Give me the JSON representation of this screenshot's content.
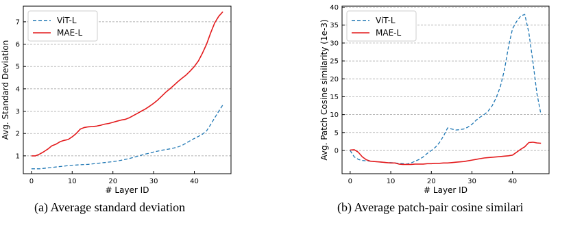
{
  "captions": [
    "(a) Average standard deviation",
    "(b) Average patch-pair cosine similari"
  ],
  "chart_data": [
    {
      "type": "line",
      "xlabel": "# Layer ID",
      "ylabel": "Avg. Standard Deviation",
      "xlim": [
        -2,
        49
      ],
      "ylim": [
        0.2,
        7.7
      ],
      "xticks": [
        0,
        10,
        20,
        30,
        40
      ],
      "yticks": [
        1,
        2,
        3,
        4,
        5,
        6,
        7
      ],
      "grid": "y-dashed",
      "legend": "top-left",
      "x": [
        0,
        1,
        2,
        3,
        4,
        5,
        6,
        7,
        8,
        9,
        10,
        11,
        12,
        13,
        14,
        15,
        16,
        17,
        18,
        19,
        20,
        21,
        22,
        23,
        24,
        25,
        26,
        27,
        28,
        29,
        30,
        31,
        32,
        33,
        34,
        35,
        36,
        37,
        38,
        39,
        40,
        41,
        42,
        43,
        44,
        45,
        46,
        47
      ],
      "series": [
        {
          "name": "ViT-L",
          "color": "#1f77b4",
          "dash": "dashed",
          "values": [
            0.42,
            0.42,
            0.42,
            0.44,
            0.46,
            0.48,
            0.5,
            0.52,
            0.54,
            0.56,
            0.58,
            0.59,
            0.6,
            0.61,
            0.62,
            0.64,
            0.66,
            0.68,
            0.7,
            0.72,
            0.74,
            0.77,
            0.8,
            0.84,
            0.88,
            0.93,
            0.98,
            1.03,
            1.08,
            1.12,
            1.17,
            1.21,
            1.25,
            1.28,
            1.31,
            1.35,
            1.4,
            1.47,
            1.57,
            1.68,
            1.78,
            1.87,
            1.97,
            2.12,
            2.4,
            2.7,
            3.0,
            3.28
          ]
        },
        {
          "name": "MAE-L",
          "color": "#e31a1c",
          "dash": "solid",
          "values": [
            1.0,
            1.0,
            1.08,
            1.18,
            1.3,
            1.45,
            1.52,
            1.63,
            1.69,
            1.73,
            1.85,
            2.0,
            2.2,
            2.27,
            2.3,
            2.31,
            2.33,
            2.37,
            2.42,
            2.45,
            2.5,
            2.55,
            2.6,
            2.63,
            2.7,
            2.8,
            2.9,
            3.0,
            3.1,
            3.22,
            3.35,
            3.5,
            3.67,
            3.85,
            4.0,
            4.16,
            4.33,
            4.48,
            4.62,
            4.8,
            5.0,
            5.25,
            5.6,
            6.0,
            6.5,
            6.95,
            7.25,
            7.45
          ]
        }
      ]
    },
    {
      "type": "line",
      "xlabel": "# Layer ID",
      "ylabel": "Avg. Patch Cosine similarity (1e-3)",
      "xlim": [
        -2,
        49
      ],
      "ylim": [
        -6.5,
        40.3
      ],
      "xticks": [
        0,
        10,
        20,
        30,
        40
      ],
      "yticks": [
        0,
        5,
        10,
        15,
        20,
        25,
        30,
        35,
        40
      ],
      "grid": "y-dashed",
      "legend": "top-left",
      "series": [
        {
          "name": "ViT-L",
          "color": "#1f77b4",
          "dash": "dashed",
          "x": [
            0,
            1,
            2,
            3,
            4,
            5,
            6,
            7,
            8,
            9,
            10,
            11,
            12,
            13,
            14,
            15,
            16,
            17,
            18,
            19,
            20,
            21,
            22,
            23,
            24,
            25,
            26,
            27,
            28,
            29,
            30,
            31,
            32,
            33,
            34,
            35,
            36,
            37,
            38,
            39,
            40,
            41,
            42,
            43,
            44,
            45,
            46,
            47
          ],
          "values": [
            0.0,
            -1.8,
            -2.5,
            -2.8,
            -2.9,
            -3.0,
            -3.1,
            -3.2,
            -3.3,
            -3.4,
            -3.4,
            -3.5,
            -3.6,
            -3.7,
            -3.8,
            -3.5,
            -3.0,
            -2.5,
            -1.8,
            -0.8,
            0.0,
            0.9,
            2.2,
            4.0,
            6.3,
            6.0,
            5.7,
            5.8,
            6.0,
            6.5,
            7.3,
            8.4,
            9.3,
            10.0,
            11.0,
            12.5,
            14.8,
            17.8,
            22.5,
            29.0,
            34.0,
            36.0,
            37.5,
            38.0,
            33.0,
            25.0,
            16.0,
            10.0
          ]
        },
        {
          "name": "MAE-L",
          "color": "#e31a1c",
          "dash": "solid",
          "x": [
            0,
            1,
            2,
            3,
            4,
            5,
            6,
            7,
            8,
            9,
            10,
            11,
            12,
            13,
            14,
            15,
            16,
            17,
            18,
            19,
            20,
            21,
            22,
            23,
            24,
            25,
            26,
            27,
            28,
            29,
            30,
            31,
            32,
            33,
            34,
            35,
            36,
            37,
            38,
            39,
            40,
            41,
            42,
            43,
            44,
            45,
            46,
            47
          ],
          "values": [
            0.1,
            0.2,
            -0.5,
            -1.8,
            -2.6,
            -3.0,
            -3.1,
            -3.2,
            -3.3,
            -3.4,
            -3.5,
            -3.5,
            -3.8,
            -3.9,
            -3.9,
            -3.9,
            -3.8,
            -3.8,
            -3.8,
            -3.7,
            -3.7,
            -3.6,
            -3.6,
            -3.5,
            -3.5,
            -3.4,
            -3.3,
            -3.2,
            -3.1,
            -2.9,
            -2.7,
            -2.5,
            -2.3,
            -2.1,
            -2.0,
            -1.9,
            -1.8,
            -1.7,
            -1.6,
            -1.5,
            -1.3,
            -0.5,
            0.3,
            1.0,
            2.2,
            2.3,
            2.1,
            2.0
          ]
        }
      ]
    }
  ]
}
